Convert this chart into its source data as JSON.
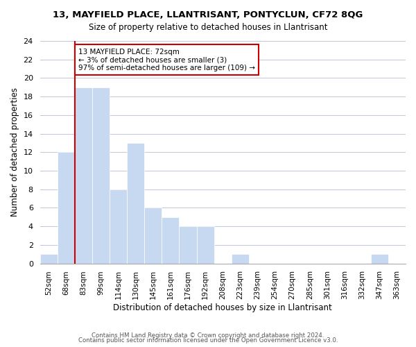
{
  "title": "13, MAYFIELD PLACE, LLANTRISANT, PONTYCLUN, CF72 8QG",
  "subtitle": "Size of property relative to detached houses in Llantrisant",
  "xlabel": "Distribution of detached houses by size in Llantrisant",
  "ylabel": "Number of detached properties",
  "bar_labels": [
    "52sqm",
    "68sqm",
    "83sqm",
    "99sqm",
    "114sqm",
    "130sqm",
    "145sqm",
    "161sqm",
    "176sqm",
    "192sqm",
    "208sqm",
    "223sqm",
    "239sqm",
    "254sqm",
    "270sqm",
    "285sqm",
    "301sqm",
    "316sqm",
    "332sqm",
    "347sqm",
    "363sqm"
  ],
  "bar_values": [
    1,
    12,
    19,
    19,
    8,
    13,
    6,
    5,
    4,
    4,
    0,
    1,
    0,
    0,
    0,
    0,
    0,
    0,
    0,
    1,
    0
  ],
  "bar_color": "#c6d9f0",
  "marker_line_color": "#cc0000",
  "annotation_line1": "13 MAYFIELD PLACE: 72sqm",
  "annotation_line2": "← 3% of detached houses are smaller (3)",
  "annotation_line3": "97% of semi-detached houses are larger (109) →",
  "annotation_box_color": "#ffffff",
  "annotation_box_edge_color": "#cc0000",
  "ylim": [
    0,
    24
  ],
  "yticks": [
    0,
    2,
    4,
    6,
    8,
    10,
    12,
    14,
    16,
    18,
    20,
    22,
    24
  ],
  "footer_line1": "Contains HM Land Registry data © Crown copyright and database right 2024.",
  "footer_line2": "Contains public sector information licensed under the Open Government Licence v3.0.",
  "background_color": "#ffffff",
  "grid_color": "#c0c8d8"
}
